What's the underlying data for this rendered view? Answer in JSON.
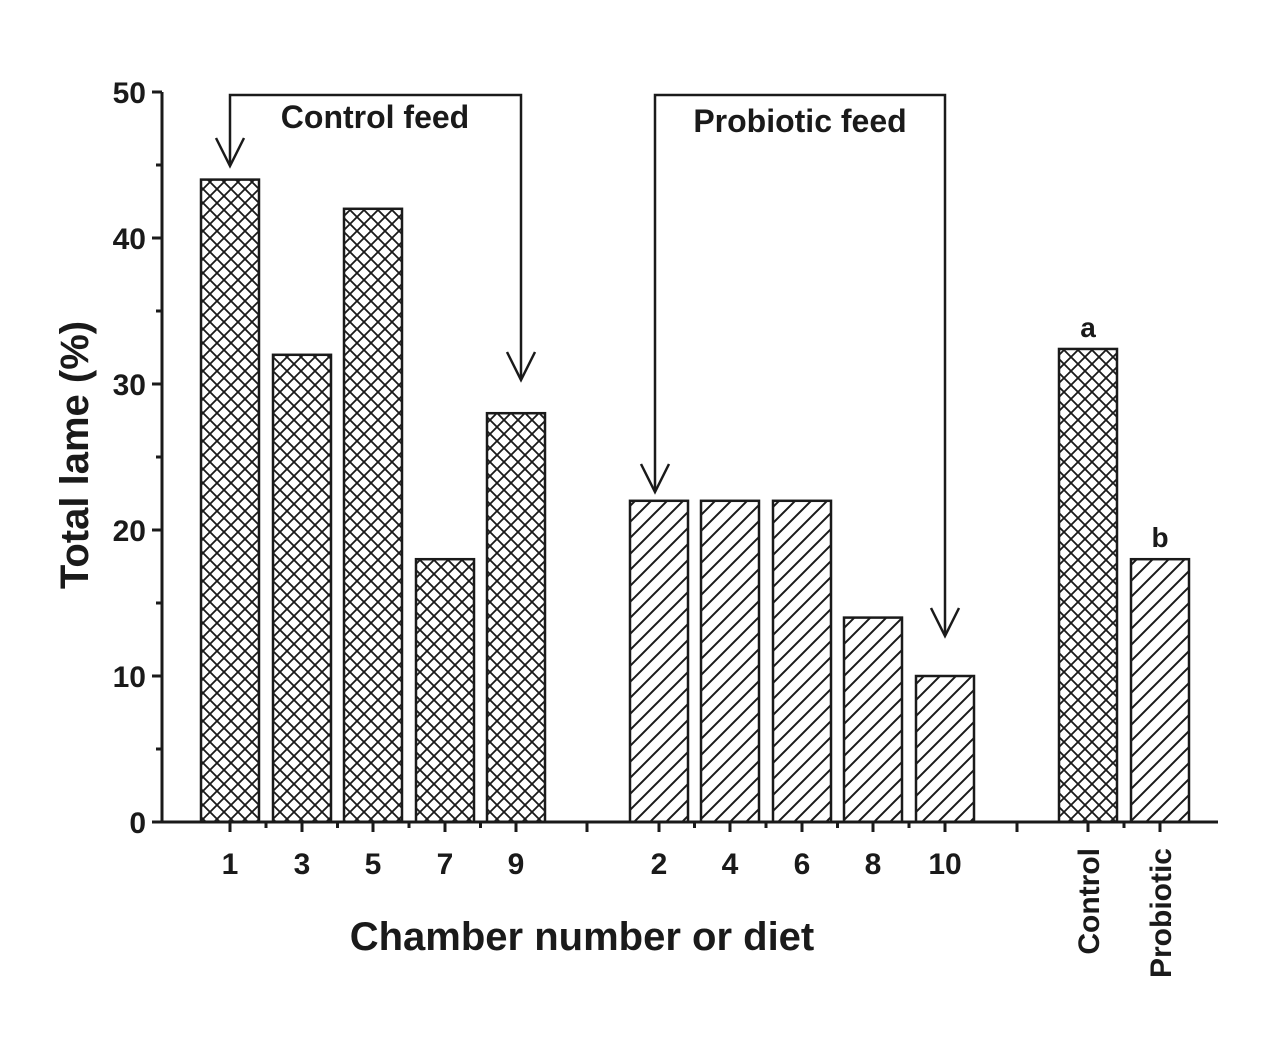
{
  "chart_data": {
    "type": "bar",
    "title": "",
    "ylabel": "Total lame (%)",
    "xlabel": "Chamber number or diet",
    "ylim": [
      0,
      50
    ],
    "yticks": [
      0,
      10,
      20,
      30,
      40,
      50
    ],
    "groups": [
      {
        "name": "Control feed",
        "pattern": "crosshatch",
        "categories": [
          "1",
          "3",
          "5",
          "7",
          "9"
        ],
        "values": [
          44,
          32,
          42,
          18,
          28
        ]
      },
      {
        "name": "Probiotic feed",
        "pattern": "diagonal",
        "categories": [
          "2",
          "4",
          "6",
          "8",
          "10"
        ],
        "values": [
          22,
          22,
          22,
          14,
          10
        ]
      },
      {
        "name": "",
        "pattern": "mixed",
        "categories": [
          "Control",
          "Probiotic"
        ],
        "values": [
          32.4,
          18
        ],
        "patterns": [
          "crosshatch",
          "diagonal"
        ],
        "letters": [
          "a",
          "b"
        ]
      }
    ],
    "annotations": {
      "control_feed": "Control feed",
      "probiotic_feed": "Probiotic feed"
    }
  }
}
